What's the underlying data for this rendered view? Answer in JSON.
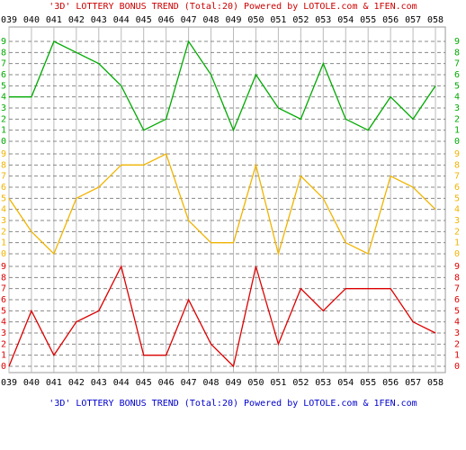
{
  "chart_data": {
    "type": "line",
    "title": "'3D' LOTTERY BONUS TREND (Total:20)  Powered by LOTOLE.com & 1FEN.com",
    "footer": "'3D' LOTTERY BONUS TREND (Total:20)  Powered by LOTOLE.com & 1FEN.com",
    "title_color": "#cc0000",
    "footer_color": "#0000cc",
    "categories": [
      "039",
      "040",
      "041",
      "042",
      "043",
      "044",
      "045",
      "046",
      "047",
      "048",
      "049",
      "050",
      "051",
      "052",
      "053",
      "054",
      "055",
      "056",
      "057",
      "058"
    ],
    "ylim": [
      0,
      9
    ],
    "yticks": [
      0,
      1,
      2,
      3,
      4,
      5,
      6,
      7,
      8,
      9
    ],
    "grid": true,
    "series": [
      {
        "color": "#00aa00",
        "values": [
          4,
          4,
          9,
          8,
          7,
          5,
          1,
          2,
          9,
          6,
          1,
          6,
          3,
          2,
          7,
          2,
          1,
          4,
          2,
          5
        ]
      },
      {
        "color": "#f0b400",
        "values": [
          5,
          2,
          0,
          5,
          6,
          8,
          8,
          9,
          3,
          1,
          1,
          8,
          0,
          7,
          5,
          1,
          0,
          7,
          6,
          4
        ]
      },
      {
        "color": "#dd0000",
        "values": [
          0,
          5,
          1,
          4,
          5,
          9,
          1,
          1,
          6,
          2,
          0,
          9,
          2,
          7,
          5,
          7,
          7,
          7,
          4,
          3
        ]
      }
    ]
  }
}
